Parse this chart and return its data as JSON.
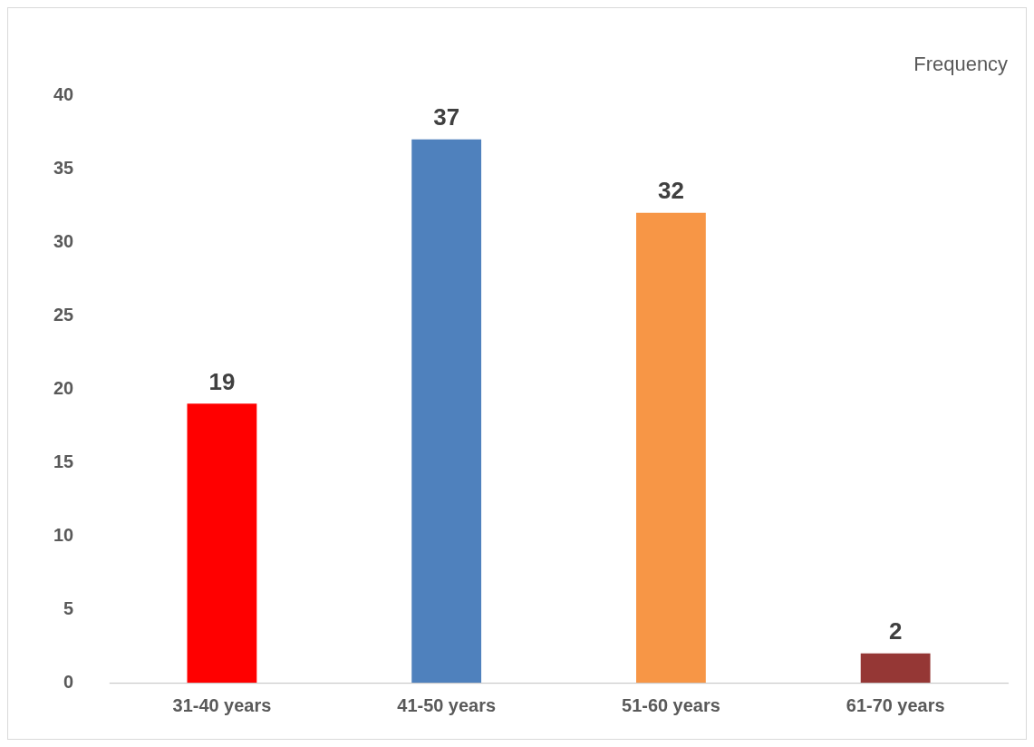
{
  "chart_data": {
    "type": "bar",
    "title": "Frequency",
    "categories": [
      "31-40 years",
      "41-50 years",
      "51-60 years",
      "61-70 years"
    ],
    "values": [
      19,
      37,
      32,
      2
    ],
    "colors": [
      "#ff0000",
      "#4f81bd",
      "#f79646",
      "#953735"
    ],
    "ylim": [
      0,
      40
    ],
    "yticks": [
      0,
      5,
      10,
      15,
      20,
      25,
      30,
      35,
      40
    ],
    "data_labels": true
  }
}
